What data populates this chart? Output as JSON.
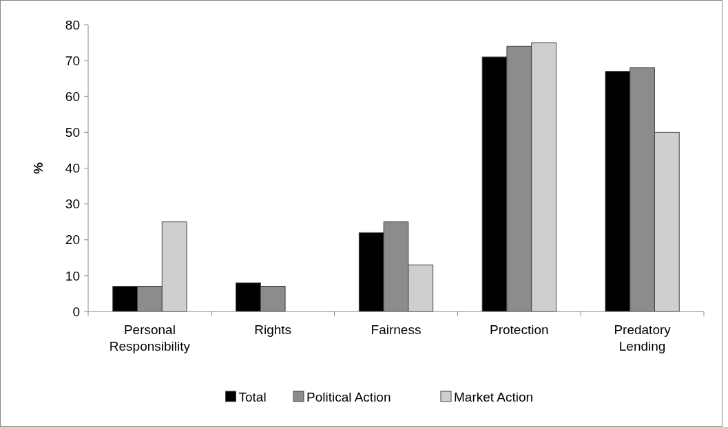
{
  "chart_data": {
    "type": "bar",
    "ylabel": "%",
    "categories": [
      "Personal Responsibility",
      "Rights",
      "Fairness",
      "Protection",
      "Predatory Lending"
    ],
    "series": [
      {
        "name": "Total",
        "color": "#000000",
        "values": [
          7,
          8,
          22,
          71,
          67
        ]
      },
      {
        "name": "Political Action",
        "color": "#8c8c8c",
        "values": [
          7,
          7,
          25,
          74,
          68
        ]
      },
      {
        "name": "Market Action",
        "color": "#cfcfcf",
        "values": [
          25,
          null,
          13,
          75,
          50
        ]
      }
    ],
    "ylim": [
      0,
      80
    ],
    "yticks": [
      0,
      10,
      20,
      30,
      40,
      50,
      60,
      70,
      80
    ],
    "grid": false,
    "legend": "bottom"
  }
}
